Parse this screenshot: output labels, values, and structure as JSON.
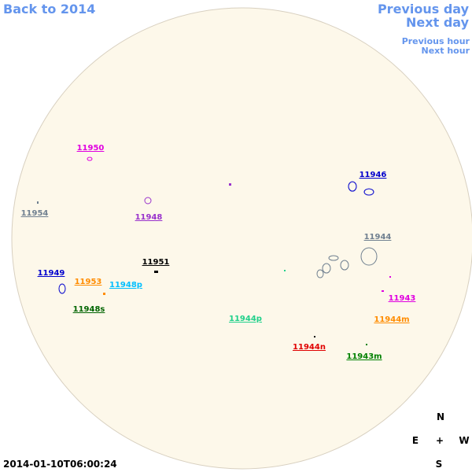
{
  "nav": {
    "back": "Back to 2014",
    "previous_day": "Previous day",
    "next_day": "Next day",
    "previous_hour": "Previous hour",
    "next_hour": "Next hour"
  },
  "regions": [
    {
      "label": "11950",
      "color": "#e000e0"
    },
    {
      "label": "11954",
      "color": "#708090"
    },
    {
      "label": "11948",
      "color": "#9932cc"
    },
    {
      "label": "11946",
      "color": "#0000cd"
    },
    {
      "label": "11944",
      "color": "#708090"
    },
    {
      "label": "11951",
      "color": "#000000"
    },
    {
      "label": "11949",
      "color": "#0000cd"
    },
    {
      "label": "11953",
      "color": "#ff8c00"
    },
    {
      "label": "11948p",
      "color": "#00bfff"
    },
    {
      "label": "11948s",
      "color": "#006400"
    },
    {
      "label": "11943",
      "color": "#e000e0"
    },
    {
      "label": "11944p",
      "color": "#20d08a"
    },
    {
      "label": "11944m",
      "color": "#ff8c00"
    },
    {
      "label": "11944n",
      "color": "#e00000"
    },
    {
      "label": "11943m",
      "color": "#008000"
    }
  ],
  "timestamp": "2014-01-10T06:00:24",
  "compass": {
    "north": "N",
    "east": "E",
    "center": "+",
    "west": "W",
    "south": "S"
  }
}
